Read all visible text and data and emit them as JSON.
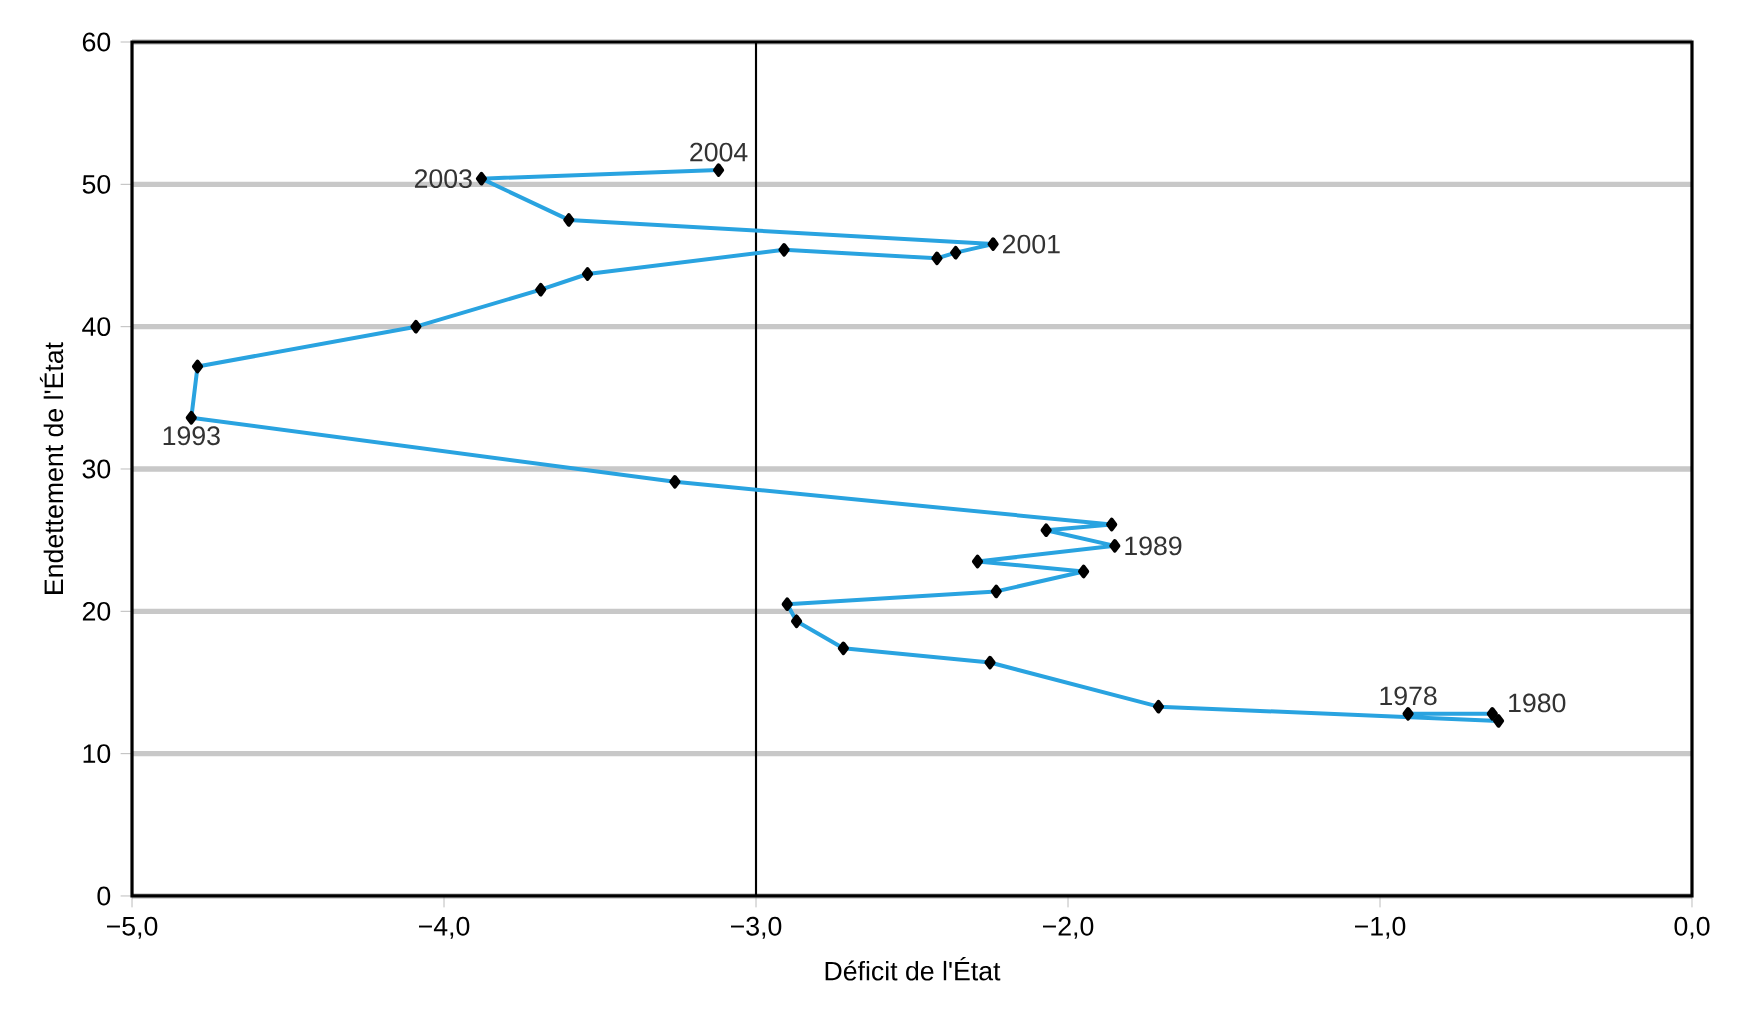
{
  "chart_data": {
    "type": "line",
    "xlabel": "Déficit de l'État",
    "ylabel": "Endettement de l'État",
    "x": [
      -0.91,
      -0.64,
      -0.62,
      -1.71,
      -2.25,
      -2.72,
      -2.87,
      -2.9,
      -2.23,
      -1.95,
      -2.29,
      -1.85,
      -2.07,
      -1.86,
      -3.26,
      -4.81,
      -4.79,
      -4.09,
      -3.69,
      -3.54,
      -2.91,
      -2.42,
      -2.36,
      -2.24,
      -3.6,
      -3.88,
      -3.12
    ],
    "series": [
      {
        "color": "#29a3e0",
        "values": [
          12.8,
          12.8,
          12.3,
          13.3,
          16.4,
          17.4,
          19.3,
          20.5,
          21.4,
          22.8,
          23.5,
          24.6,
          25.7,
          26.1,
          29.1,
          33.6,
          37.2,
          40.0,
          42.6,
          43.7,
          45.4,
          44.8,
          45.2,
          45.8,
          47.5,
          50.4,
          51.0
        ]
      }
    ],
    "marker": "diamond",
    "line_style": "solid",
    "grid": "y",
    "xlim": [
      -5,
      0
    ],
    "ylim": [
      0,
      60
    ],
    "xticks": [
      {
        "value": -5,
        "label": "−5,0"
      },
      {
        "value": -4,
        "label": "−4,0"
      },
      {
        "value": -3,
        "label": "−3,0"
      },
      {
        "value": -2,
        "label": "−2,0"
      },
      {
        "value": -1,
        "label": "−1,0"
      },
      {
        "value": 0,
        "label": "0,0"
      }
    ],
    "yticks": [
      0,
      10,
      20,
      30,
      40,
      50,
      60
    ],
    "ref_lines": [
      {
        "axis": "x",
        "value": -3,
        "color": "#000000"
      }
    ],
    "annotations": [
      {
        "text": "1978",
        "x": -0.91,
        "y": 12.8
      },
      {
        "text": "1980",
        "x": -0.62,
        "y": 12.3
      },
      {
        "text": "1989",
        "x": -1.85,
        "y": 24.6
      },
      {
        "text": "1993",
        "x": -4.81,
        "y": 33.6
      },
      {
        "text": "2001",
        "x": -2.24,
        "y": 45.8
      },
      {
        "text": "2003",
        "x": -3.88,
        "y": 50.4
      },
      {
        "text": "2004",
        "x": -3.12,
        "y": 51.0
      }
    ]
  }
}
